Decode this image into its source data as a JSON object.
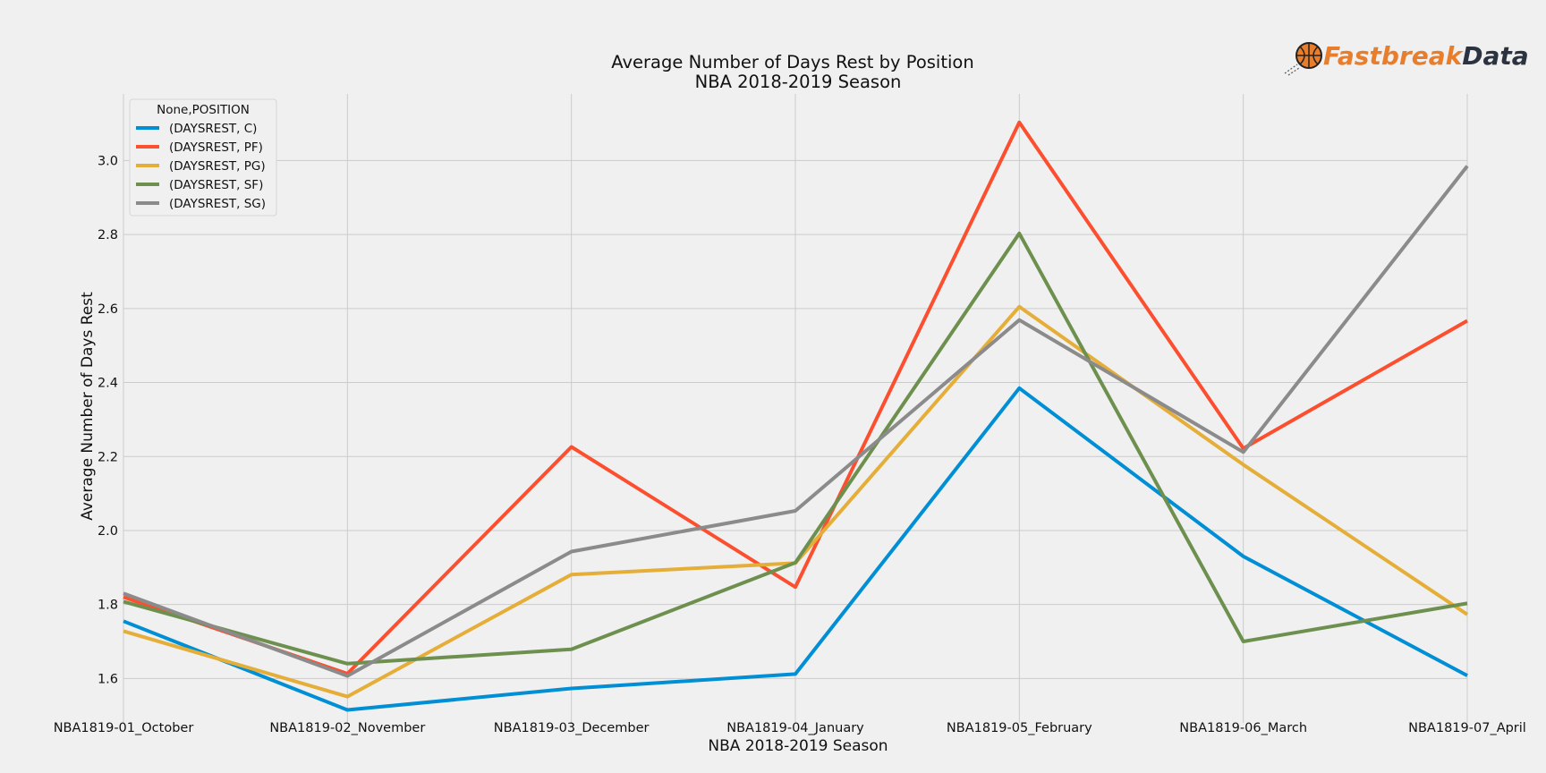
{
  "chart_data": {
    "type": "line",
    "title": "Average Number of Days Rest by Position",
    "subtitle": "NBA 2018-2019 Season",
    "xlabel": "NBA 2018-2019 Season",
    "ylabel": "Average Number of Days Rest",
    "categories": [
      "NBA1819-01_October",
      "NBA1819-02_November",
      "NBA1819-03_December",
      "NBA1819-04_January",
      "NBA1819-05_February",
      "NBA1819-06_March",
      "NBA1819-07_April"
    ],
    "yticks": [
      "1.6",
      "1.8",
      "2.0",
      "2.2",
      "2.4",
      "2.6",
      "2.8",
      "3.0"
    ],
    "ylim": [
      1.48,
      3.18
    ],
    "grid": true,
    "legend_title": "None,POSITION",
    "legend_position": "top-left",
    "series": [
      {
        "name": "(DAYSREST, C)",
        "color": "#008fd5",
        "values": [
          1.755,
          1.515,
          1.573,
          1.612,
          2.385,
          1.93,
          1.608
        ]
      },
      {
        "name": "(DAYSREST, PF)",
        "color": "#fc4f30",
        "values": [
          1.82,
          1.613,
          2.226,
          1.847,
          3.103,
          2.222,
          2.567
        ]
      },
      {
        "name": "(DAYSREST, PG)",
        "color": "#e5ae38",
        "values": [
          1.728,
          1.551,
          1.881,
          1.912,
          2.605,
          2.178,
          1.773
        ]
      },
      {
        "name": "(DAYSREST, SF)",
        "color": "#6d904f",
        "values": [
          1.808,
          1.64,
          1.679,
          1.913,
          2.803,
          1.7,
          1.803
        ]
      },
      {
        "name": "(DAYSREST, SG)",
        "color": "#8b8b8b",
        "values": [
          1.83,
          1.607,
          1.943,
          2.053,
          2.569,
          2.212,
          2.985
        ]
      }
    ]
  },
  "logo": {
    "part1": "Fastbreak",
    "part2": "Data",
    "color1": "#e87d2c",
    "color2": "#2c3340",
    "ball_color": "#e87d2c"
  }
}
